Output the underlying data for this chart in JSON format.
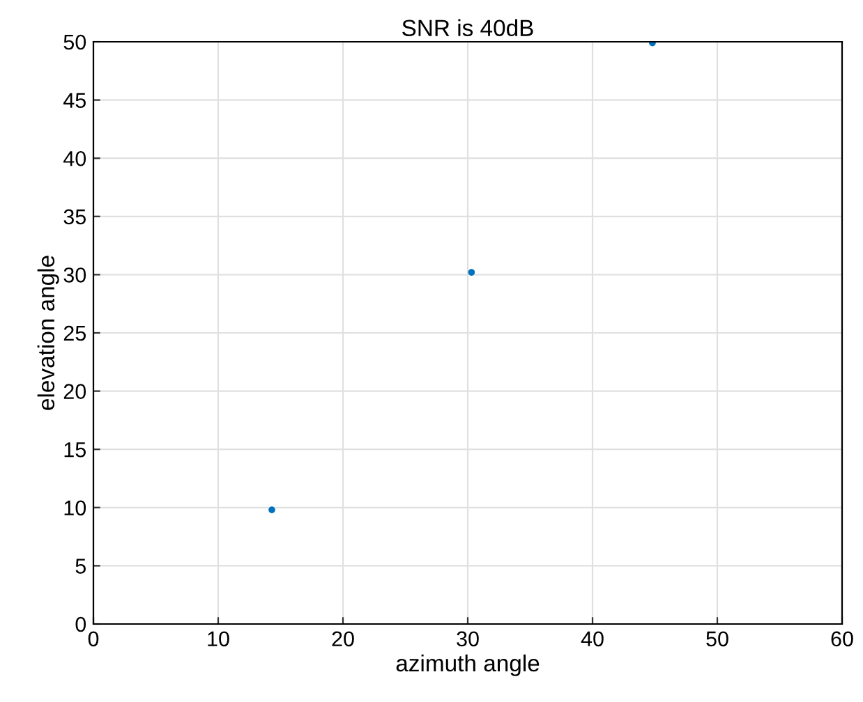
{
  "chart_data": {
    "type": "scatter",
    "title": "SNR is 40dB",
    "xlabel": "azimuth angle",
    "ylabel": "elevation angle",
    "x": [
      14.3,
      30.3,
      44.8
    ],
    "values": [
      9.8,
      30.2,
      49.9
    ],
    "color": "#0072bd",
    "marker": "circle",
    "xlim": [
      0,
      60
    ],
    "xticks": [
      0,
      10,
      20,
      30,
      40,
      50,
      60
    ],
    "ylim": [
      0,
      50
    ],
    "yticks": [
      0,
      5,
      10,
      15,
      20,
      25,
      30,
      35,
      40,
      45,
      50
    ],
    "grid": true
  }
}
